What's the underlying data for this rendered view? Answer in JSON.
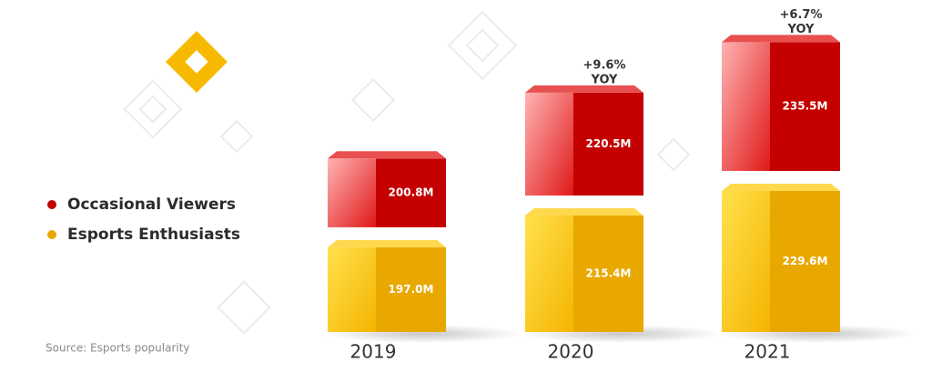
{
  "chart_data": {
    "type": "bar",
    "categories": [
      "2019",
      "2020",
      "2021"
    ],
    "series": [
      {
        "name": "Esports Enthusiasts",
        "color": "#e8a800",
        "values": [
          197.0,
          215.4,
          229.6
        ],
        "value_labels": [
          "197.0M",
          "215.4M",
          "229.6M"
        ]
      },
      {
        "name": "Occasional Viewers",
        "color": "#c40000",
        "values": [
          200.8,
          220.5,
          235.5
        ],
        "value_labels": [
          "200.8M",
          "220.5M",
          "235.5M"
        ]
      }
    ],
    "annotations": [
      null,
      [
        "+9.6%",
        "YOY"
      ],
      [
        "+6.7%",
        "YOY"
      ]
    ],
    "legend": "left",
    "source": "Source: Esports popularity"
  }
}
